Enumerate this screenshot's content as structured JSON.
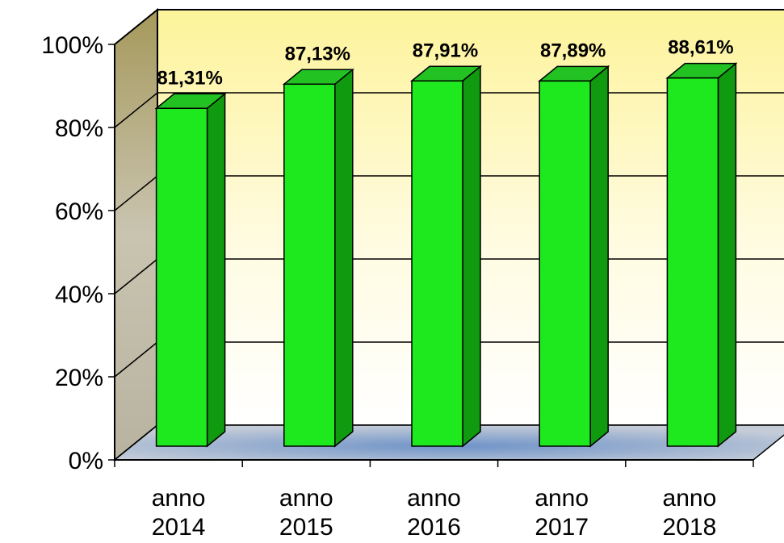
{
  "chart_data": {
    "type": "bar",
    "title": "",
    "xlabel": "",
    "ylabel": "",
    "categories": [
      [
        "anno",
        "2014"
      ],
      [
        "anno",
        "2015"
      ],
      [
        "anno",
        "2016"
      ],
      [
        "anno",
        "2017"
      ],
      [
        "anno",
        "2018"
      ]
    ],
    "values": [
      81.31,
      87.13,
      87.91,
      87.89,
      88.61
    ],
    "value_labels": [
      "81,31%",
      "87,13%",
      "87,91%",
      "87,89%",
      "88,61%"
    ],
    "ylim": [
      0,
      100
    ],
    "yticks": [
      0,
      20,
      40,
      60,
      80,
      100
    ],
    "ytick_labels": [
      "0%",
      "20%",
      "40%",
      "60%",
      "80%",
      "100%"
    ],
    "grid": true,
    "legend": "none",
    "style": "3d-column",
    "colors": {
      "bar_front": "#1ee81e",
      "bar_side": "#0f9a0f",
      "bar_top": "#22c222",
      "back_wall_top": "#fdf39a",
      "back_wall_bottom": "#ffffff",
      "side_wall": "#a89c64",
      "floor": "#9aaed0"
    }
  }
}
